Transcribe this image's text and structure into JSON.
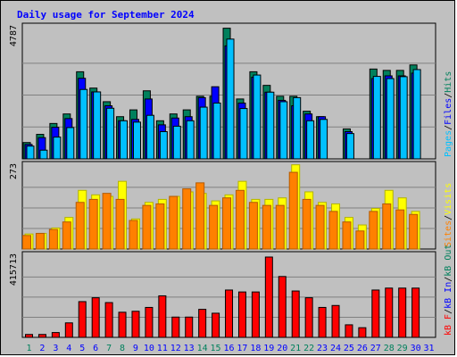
{
  "title": "Daily usage for September 2024",
  "colors": {
    "hits": "#00805c",
    "files": "#0000ff",
    "pages": "#00c0ff",
    "visits": "#ffff00",
    "sites": "#ff8000",
    "kbin": "#0000ff",
    "kbout": "#00805c",
    "kbf": "#ff0000",
    "background": "#c0c0c0",
    "title": "#0000ff",
    "weekend_day_label": "#00805c",
    "weekday_label": "#0000ff"
  },
  "axis_labels": {
    "top_max": "4787",
    "middle_max": "273",
    "bottom_max": "415713"
  },
  "legends": {
    "top": [
      {
        "label": "Pages",
        "color": "#00c0ff"
      },
      {
        "label": "/",
        "color": "#000000"
      },
      {
        "label": "Files",
        "color": "#0000ff"
      },
      {
        "label": "/",
        "color": "#000000"
      },
      {
        "label": "Hits",
        "color": "#00805c"
      }
    ],
    "middle": [
      {
        "label": "Sites",
        "color": "#ff8000"
      },
      {
        "label": "/",
        "color": "#000000"
      },
      {
        "label": "Visits",
        "color": "#ffff00"
      }
    ],
    "bottom": [
      {
        "label": "kB F",
        "color": "#ff0000"
      },
      {
        "label": "/",
        "color": "#000000"
      },
      {
        "label": "kB In",
        "color": "#0000ff"
      },
      {
        "label": "/",
        "color": "#000000"
      },
      {
        "label": "kB Out",
        "color": "#00805c"
      }
    ]
  },
  "chart_data": [
    {
      "type": "bar",
      "title": "Daily usage for September 2024",
      "categories": [
        "1",
        "2",
        "3",
        "4",
        "5",
        "6",
        "7",
        "8",
        "9",
        "10",
        "11",
        "12",
        "13",
        "14",
        "15",
        "16",
        "17",
        "18",
        "19",
        "20",
        "21",
        "22",
        "23",
        "24",
        "25",
        "26",
        "27",
        "28",
        "29",
        "30",
        "31"
      ],
      "weekend_days": [
        "1",
        "7",
        "8",
        "14",
        "15",
        "21",
        "22",
        "28",
        "29"
      ],
      "ylim": [
        0,
        4787
      ],
      "series": [
        {
          "name": "Hits",
          "values": [
            600,
            900,
            1300,
            1650,
            3200,
            2600,
            2100,
            1550,
            1800,
            2500,
            1400,
            1650,
            1800,
            2300,
            2300,
            4800,
            2200,
            3200,
            2700,
            2300,
            2300,
            1750,
            1550,
            0,
            1100,
            0,
            3300,
            3250,
            3250,
            3450,
            0
          ]
        },
        {
          "name": "Files",
          "values": [
            530,
            780,
            1160,
            1480,
            2960,
            2460,
            1950,
            1400,
            1450,
            2200,
            1250,
            1500,
            1550,
            2250,
            2650,
            4150,
            2050,
            3000,
            2450,
            2150,
            1950,
            1650,
            1550,
            0,
            1000,
            0,
            2950,
            3050,
            3050,
            3150,
            0
          ]
        },
        {
          "name": "Pages",
          "values": [
            470,
            320,
            800,
            1150,
            2550,
            2460,
            1860,
            1400,
            1350,
            1600,
            1000,
            1200,
            1400,
            1900,
            2050,
            4400,
            1850,
            3080,
            2450,
            2100,
            2250,
            1400,
            1450,
            0,
            930,
            0,
            3030,
            2950,
            3020,
            3280,
            0
          ]
        }
      ]
    },
    {
      "type": "bar",
      "categories": [
        "1",
        "2",
        "3",
        "4",
        "5",
        "6",
        "7",
        "8",
        "9",
        "10",
        "11",
        "12",
        "13",
        "14",
        "15",
        "16",
        "17",
        "18",
        "19",
        "20",
        "21",
        "22",
        "23",
        "24",
        "25",
        "26",
        "27",
        "28",
        "29",
        "30",
        "31"
      ],
      "ylim": [
        0,
        273
      ],
      "series": [
        {
          "name": "Visits",
          "values": [
            50,
            52,
            70,
            105,
            195,
            180,
            175,
            225,
            100,
            155,
            165,
            175,
            190,
            185,
            160,
            180,
            225,
            165,
            165,
            170,
            280,
            190,
            155,
            150,
            105,
            80,
            135,
            195,
            170,
            125,
            0
          ]
        },
        {
          "name": "Sites",
          "values": [
            45,
            52,
            65,
            90,
            155,
            165,
            185,
            165,
            95,
            145,
            150,
            175,
            200,
            220,
            145,
            170,
            195,
            155,
            145,
            145,
            255,
            165,
            145,
            125,
            90,
            60,
            125,
            150,
            130,
            115,
            0
          ]
        }
      ]
    },
    {
      "type": "bar",
      "categories": [
        "1",
        "2",
        "3",
        "4",
        "5",
        "6",
        "7",
        "8",
        "9",
        "10",
        "11",
        "12",
        "13",
        "14",
        "15",
        "16",
        "17",
        "18",
        "19",
        "20",
        "21",
        "22",
        "23",
        "24",
        "25",
        "26",
        "27",
        "28",
        "29",
        "30",
        "31"
      ],
      "ylim": [
        0,
        415713
      ],
      "series": [
        {
          "name": "kB F",
          "values": [
            15000,
            15000,
            25000,
            75000,
            185000,
            205000,
            180000,
            130000,
            135000,
            155000,
            215000,
            105000,
            105000,
            145000,
            125000,
            245000,
            235000,
            235000,
            415713,
            315000,
            240000,
            205000,
            155000,
            165000,
            65000,
            50000,
            245000,
            255000,
            255000,
            255000,
            0
          ]
        },
        {
          "name": "kB In",
          "values": [
            0,
            0,
            0,
            0,
            0,
            0,
            0,
            0,
            0,
            0,
            0,
            0,
            0,
            0,
            0,
            0,
            0,
            0,
            0,
            0,
            0,
            0,
            0,
            0,
            0,
            0,
            0,
            0,
            0,
            0,
            0
          ]
        },
        {
          "name": "kB Out",
          "values": [
            0,
            0,
            0,
            0,
            0,
            0,
            0,
            0,
            0,
            0,
            0,
            0,
            0,
            0,
            0,
            0,
            0,
            0,
            0,
            0,
            0,
            0,
            0,
            0,
            0,
            0,
            0,
            0,
            0,
            0,
            0
          ]
        }
      ]
    }
  ]
}
